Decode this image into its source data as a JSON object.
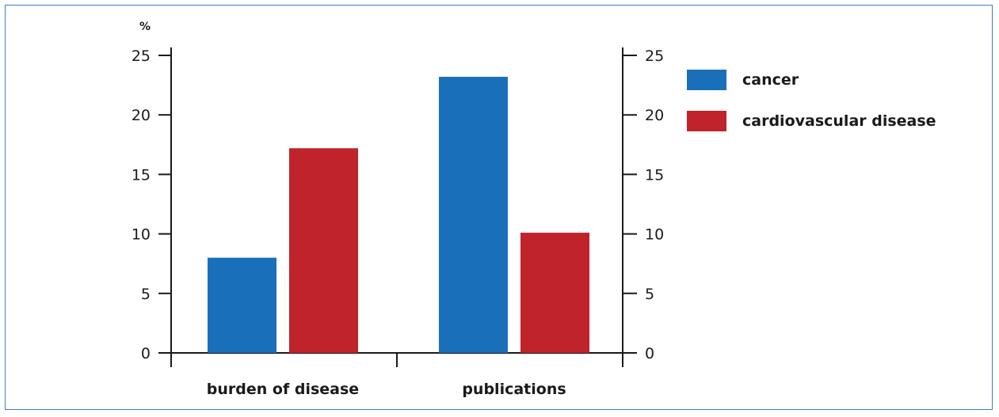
{
  "chart_data": {
    "type": "bar",
    "title": "",
    "ylabel": "%",
    "xlabel": "",
    "categories": [
      "burden of disease",
      "publications"
    ],
    "series": [
      {
        "name": "cancer",
        "color": "#1a6fba",
        "values": [
          8,
          23.2
        ]
      },
      {
        "name": "cardiovascular disease",
        "color": "#c0232a",
        "values": [
          17.2,
          10.1
        ]
      }
    ],
    "ylim": [
      0,
      25
    ],
    "yticks": [
      "0",
      "5",
      "10",
      "15",
      "20",
      "25"
    ],
    "secondary_y_axis": true,
    "grid": false,
    "legend": "right"
  },
  "frame_color": "#3a80c4"
}
